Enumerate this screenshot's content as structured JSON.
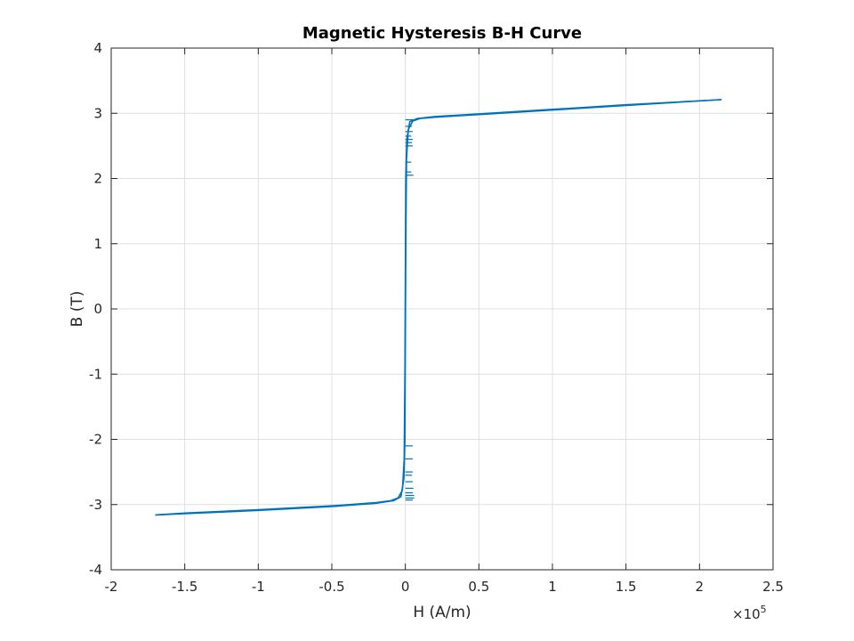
{
  "chart_data": {
    "type": "line",
    "title": "Magnetic Hysteresis B-H Curve",
    "xlabel": "H (A/m)",
    "ylabel": "B (T)",
    "x_scale_exponent": "×10",
    "x_scale_power": "5",
    "xlim": [
      -200000,
      250000
    ],
    "ylim": [
      -4,
      4
    ],
    "x_ticks": [
      -200000,
      -150000,
      -100000,
      -50000,
      0,
      50000,
      100000,
      150000,
      200000,
      250000
    ],
    "x_tick_labels": [
      "-2",
      "-1.5",
      "-1",
      "-0.5",
      "0",
      "0.5",
      "1",
      "1.5",
      "2",
      "2.5"
    ],
    "y_ticks": [
      -4,
      -3,
      -2,
      -1,
      0,
      1,
      2,
      3,
      4
    ],
    "y_tick_labels": [
      "-4",
      "-3",
      "-2",
      "-1",
      "0",
      "1",
      "2",
      "3",
      "4"
    ],
    "grid": true,
    "color": "#0072BD",
    "series": [
      {
        "values": [
          [
            -170000,
            -3.16
          ],
          [
            -150000,
            -3.14
          ],
          [
            -100000,
            -3.09
          ],
          [
            -50000,
            -3.03
          ],
          [
            -20000,
            -2.98
          ],
          [
            -8000,
            -2.94
          ],
          [
            -3000,
            -2.88
          ],
          [
            -1000,
            -2.6
          ],
          [
            -300,
            -2.0
          ],
          [
            0,
            -0.5
          ],
          [
            300,
            1.0
          ],
          [
            800,
            2.3
          ],
          [
            2000,
            2.75
          ],
          [
            5000,
            2.88
          ],
          [
            10000,
            2.92
          ],
          [
            20000,
            2.94
          ],
          [
            50000,
            2.98
          ],
          [
            100000,
            3.05
          ],
          [
            150000,
            3.12
          ],
          [
            215000,
            3.21
          ]
        ]
      },
      {
        "values": [
          [
            215000,
            3.21
          ],
          [
            150000,
            3.13
          ],
          [
            100000,
            3.06
          ],
          [
            50000,
            2.99
          ],
          [
            20000,
            2.95
          ],
          [
            8000,
            2.92
          ],
          [
            3000,
            2.87
          ],
          [
            1000,
            2.6
          ],
          [
            300,
            2.0
          ],
          [
            0,
            0.5
          ],
          [
            -300,
            -1.0
          ],
          [
            -800,
            -2.3
          ],
          [
            -2000,
            -2.78
          ],
          [
            -5000,
            -2.9
          ],
          [
            -10000,
            -2.94
          ],
          [
            -20000,
            -2.97
          ],
          [
            -50000,
            -3.02
          ],
          [
            -100000,
            -3.08
          ],
          [
            -150000,
            -3.13
          ],
          [
            -170000,
            -3.16
          ]
        ]
      }
    ],
    "spurs_upper": [
      [
        2.1,
        4000
      ],
      [
        2.5,
        5000
      ],
      [
        2.55,
        4500
      ],
      [
        2.6,
        5000
      ],
      [
        2.65,
        4000
      ],
      [
        2.72,
        5000
      ],
      [
        2.8,
        4500
      ],
      [
        2.9,
        6000
      ],
      [
        2.05,
        5500
      ],
      [
        2.25,
        4000
      ]
    ],
    "spurs_lower": [
      [
        -2.1,
        5000
      ],
      [
        -2.3,
        5000
      ],
      [
        -2.5,
        5000
      ],
      [
        -2.55,
        4500
      ],
      [
        -2.65,
        5000
      ],
      [
        -2.75,
        5500
      ],
      [
        -2.82,
        5000
      ],
      [
        -2.86,
        6000
      ],
      [
        -2.9,
        6000
      ],
      [
        -2.93,
        5000
      ]
    ]
  }
}
